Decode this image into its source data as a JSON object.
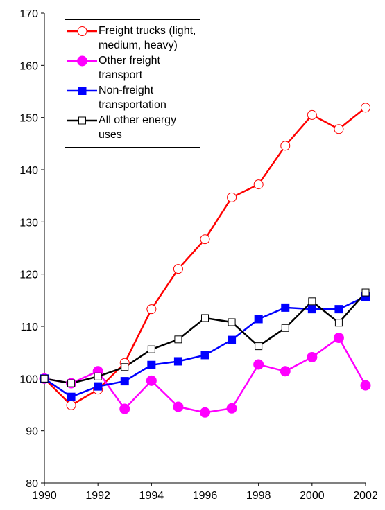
{
  "chart_data": {
    "type": "line",
    "x": [
      1990,
      1991,
      1992,
      1993,
      1994,
      1995,
      1996,
      1997,
      1998,
      1999,
      2000,
      2001,
      2002
    ],
    "xlim": [
      1990,
      2002
    ],
    "xticks": [
      1990,
      1992,
      1994,
      1996,
      1998,
      2000,
      2002
    ],
    "ylim": [
      80,
      170
    ],
    "yticks": [
      80,
      90,
      100,
      110,
      120,
      130,
      140,
      150,
      160,
      170
    ],
    "grid": false,
    "legend": "upper left",
    "series": [
      {
        "name": "Freight trucks (light, medium, heavy)",
        "color": "#ff0000",
        "marker": "circle",
        "filled": false,
        "values": [
          100,
          94.9,
          97.9,
          103.0,
          113.3,
          121.0,
          126.7,
          134.7,
          137.2,
          144.6,
          150.5,
          147.8,
          151.9
        ]
      },
      {
        "name": "Other freight transport",
        "color": "#ff00ff",
        "marker": "circle",
        "filled": true,
        "values": [
          100,
          99.1,
          101.4,
          94.2,
          99.6,
          94.6,
          93.5,
          94.3,
          102.7,
          101.4,
          104.1,
          107.8,
          98.7
        ]
      },
      {
        "name": "Non-freight transportation",
        "color": "#0000ff",
        "marker": "square",
        "filled": true,
        "values": [
          100,
          96.5,
          98.5,
          99.5,
          102.6,
          103.3,
          104.5,
          107.4,
          111.4,
          113.6,
          113.3,
          113.3,
          115.7
        ]
      },
      {
        "name": "All other energy uses",
        "color": "#000000",
        "marker": "square",
        "filled": false,
        "values": [
          100,
          99.1,
          100.4,
          102.2,
          105.6,
          107.5,
          111.6,
          110.8,
          106.2,
          109.7,
          114.8,
          110.7,
          116.5
        ]
      }
    ]
  }
}
